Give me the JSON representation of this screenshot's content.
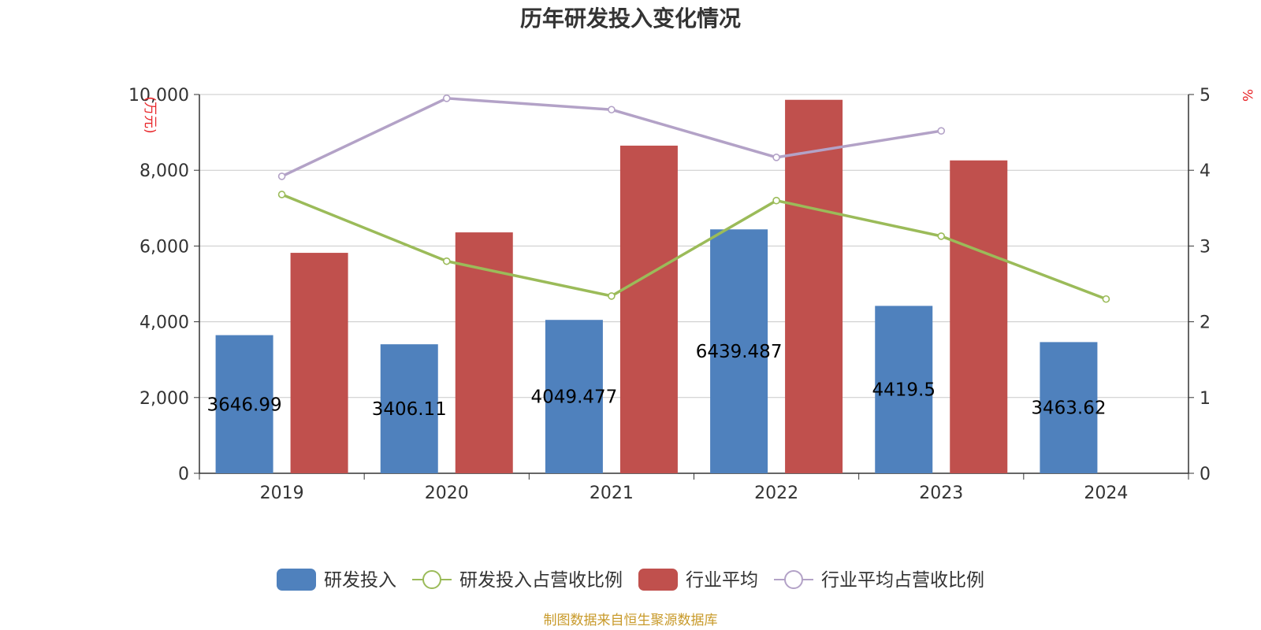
{
  "chart_data": {
    "type": "bar",
    "title": "历年研发投入变化情况",
    "categories": [
      "2019",
      "2020",
      "2021",
      "2022",
      "2023",
      "2024"
    ],
    "y_left": {
      "unit_label": "(万元)",
      "min": 0,
      "max": 10000,
      "ticks": [
        "0",
        "2,000",
        "4,000",
        "6,000",
        "8,000",
        "10,000"
      ]
    },
    "y_right": {
      "unit_label": "%",
      "min": 0,
      "max": 5,
      "ticks": [
        "0",
        "1",
        "2",
        "3",
        "4",
        "5"
      ]
    },
    "grid": true,
    "legend_position": "bottom",
    "series": [
      {
        "name": "研发投入",
        "kind": "bar",
        "axis": "left",
        "color": "#4f81bd",
        "values": [
          3646.99,
          3406.11,
          4049.477,
          6439.487,
          4419.5,
          3463.62
        ],
        "labels": [
          "3646.99",
          "3406.11",
          "4049.477",
          "6439.487",
          "4419.5",
          "3463.62"
        ]
      },
      {
        "name": "研发投入占营收比例",
        "kind": "line",
        "axis": "right",
        "color": "#9bbb59",
        "values": [
          3.68,
          2.8,
          2.34,
          3.6,
          3.13,
          2.3
        ]
      },
      {
        "name": "行业平均",
        "kind": "bar",
        "axis": "left",
        "color": "#c0504d",
        "values": [
          5820,
          6360,
          8650,
          9860,
          8260,
          null
        ]
      },
      {
        "name": "行业平均占营收比例",
        "kind": "line",
        "axis": "right",
        "color": "#b3a2c7",
        "values": [
          3.92,
          4.95,
          4.8,
          4.17,
          4.52,
          null
        ]
      }
    ]
  },
  "source": "制图数据来自恒生聚源数据库"
}
